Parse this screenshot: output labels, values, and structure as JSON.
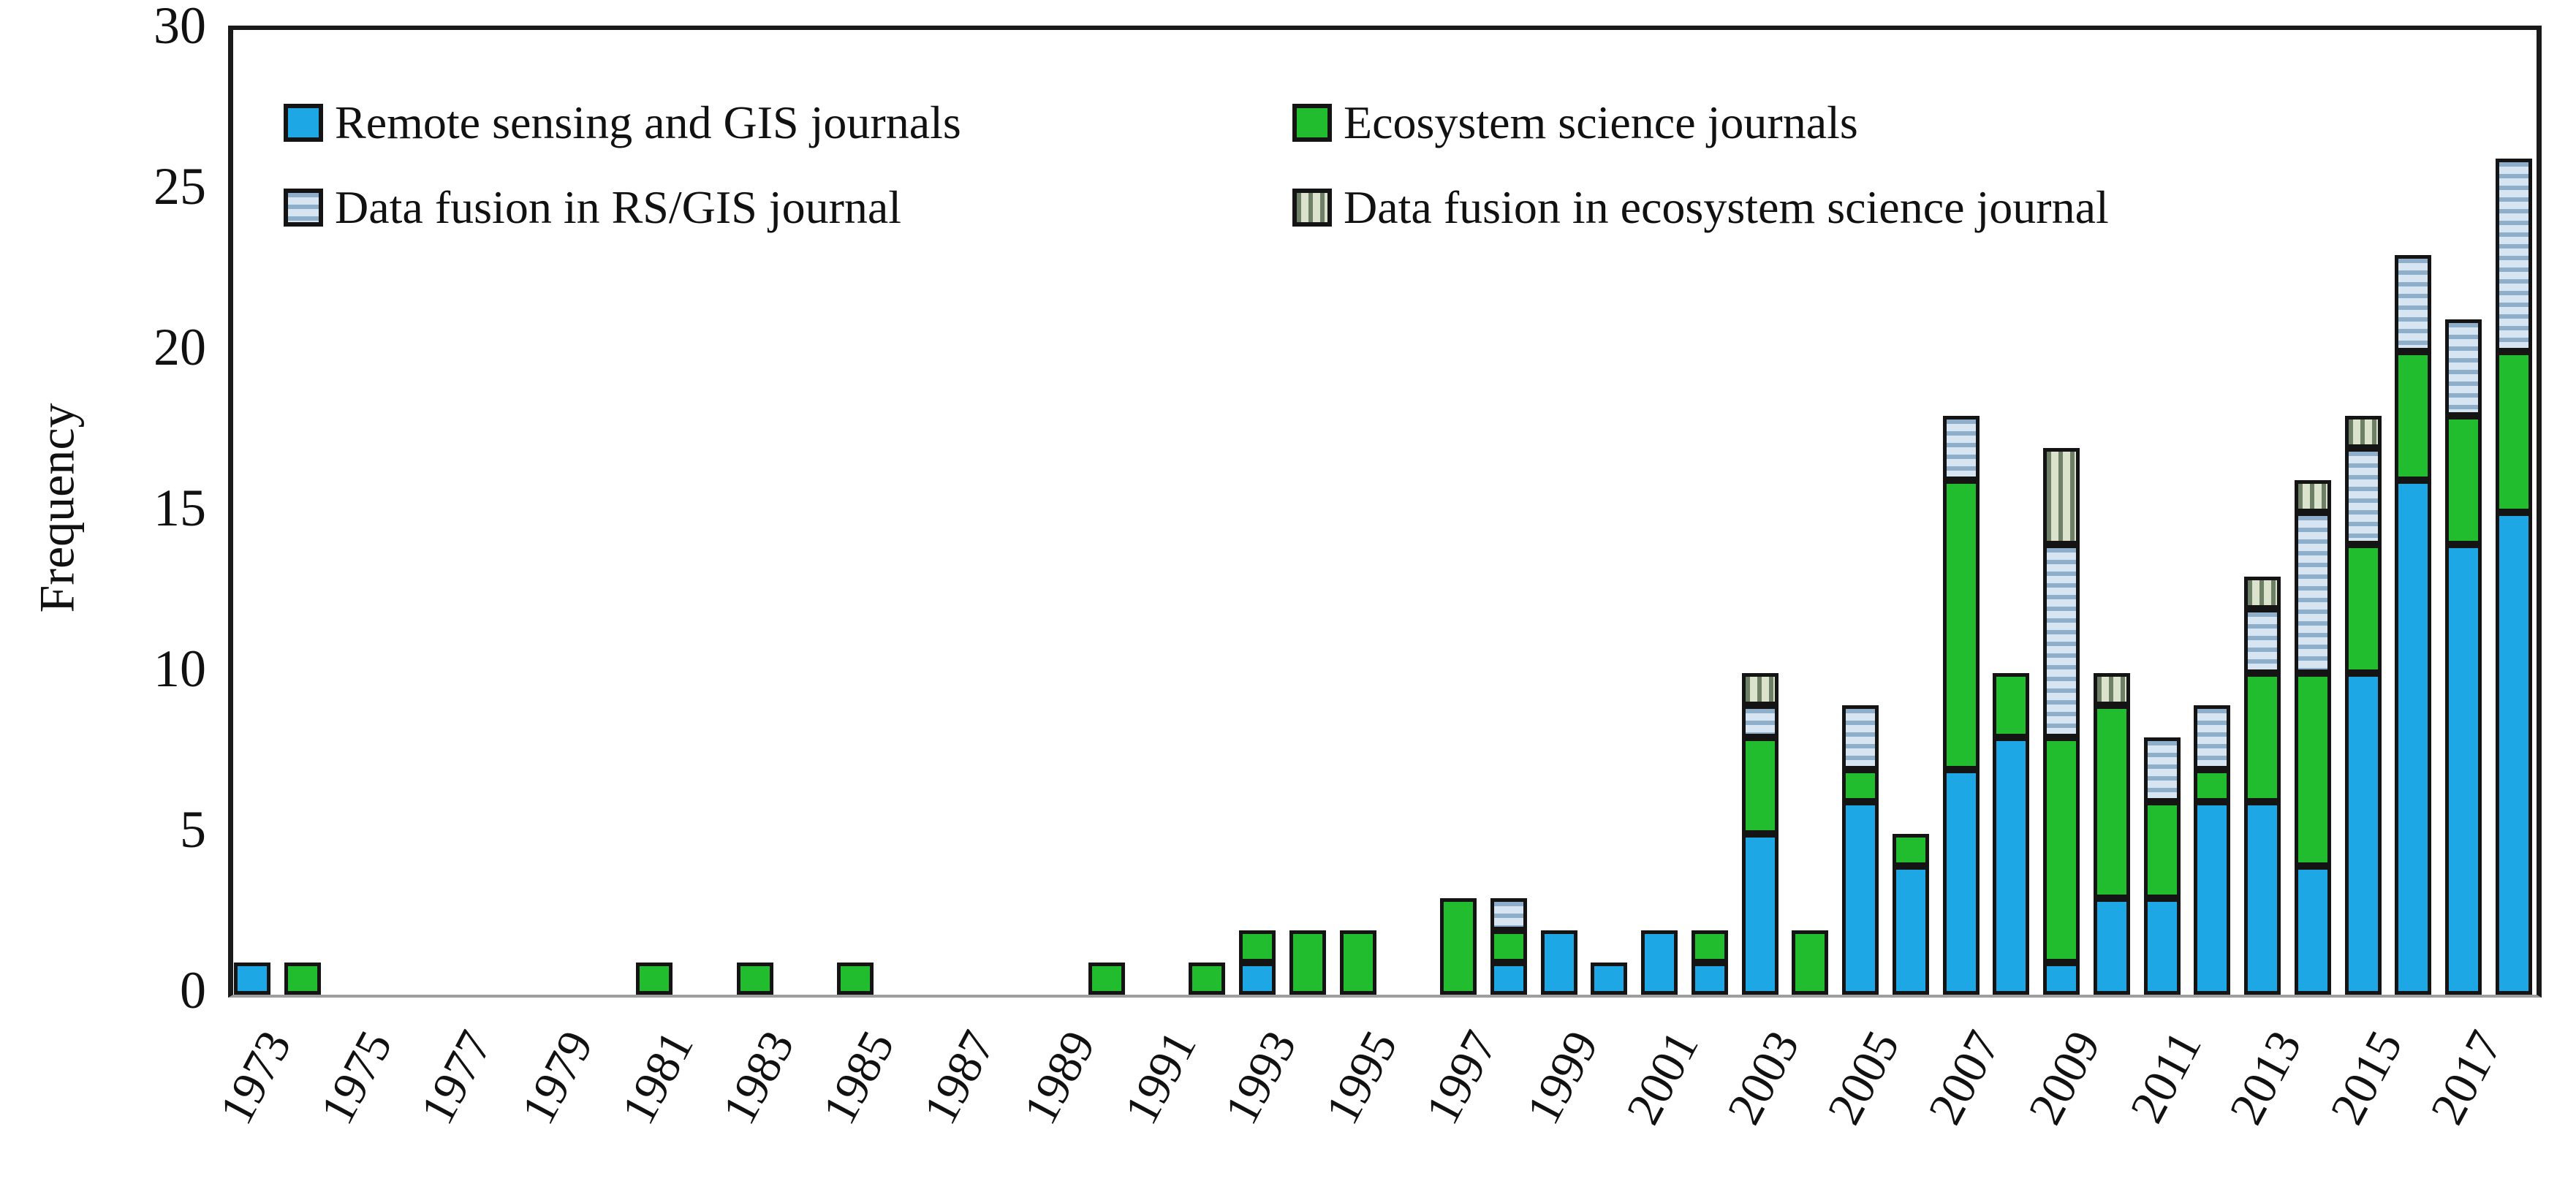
{
  "chart_data": {
    "type": "bar",
    "stacked": true,
    "title": "",
    "xlabel": "",
    "ylabel": "Frequency",
    "ylim": [
      0,
      30
    ],
    "yticks": [
      0,
      5,
      10,
      15,
      20,
      25,
      30
    ],
    "x_tick_labels": [
      "1973",
      "1975",
      "1977",
      "1979",
      "1981",
      "1983",
      "1985",
      "1987",
      "1989",
      "1991",
      "1993",
      "1995",
      "1997",
      "1999",
      "2001",
      "2003",
      "2005",
      "2007",
      "2009",
      "2011",
      "2013",
      "2015",
      "2017"
    ],
    "years": [
      1973,
      1974,
      1975,
      1976,
      1977,
      1978,
      1979,
      1980,
      1981,
      1982,
      1983,
      1984,
      1985,
      1986,
      1987,
      1988,
      1989,
      1990,
      1991,
      1992,
      1993,
      1994,
      1995,
      1996,
      1997,
      1998,
      1999,
      2000,
      2001,
      2002,
      2003,
      2004,
      2005,
      2006,
      2007,
      2008,
      2009,
      2010,
      2011,
      2012,
      2013,
      2014,
      2015,
      2016,
      2017,
      2018
    ],
    "grid": false,
    "legend_position": "top-left-inside",
    "series": [
      {
        "name": "Remote sensing and GIS journals",
        "style": "solid",
        "color": "#1da7e4",
        "values": [
          1,
          0,
          0,
          0,
          0,
          0,
          0,
          0,
          0,
          0,
          0,
          0,
          0,
          0,
          0,
          0,
          0,
          0,
          0,
          0,
          1,
          0,
          0,
          0,
          0,
          1,
          2,
          1,
          2,
          1,
          5,
          0,
          6,
          4,
          7,
          8,
          1,
          3,
          3,
          6,
          6,
          4,
          10,
          16,
          14,
          15
        ]
      },
      {
        "name": "Ecosystem science journals",
        "style": "solid",
        "color": "#22bd2f",
        "values": [
          0,
          1,
          0,
          0,
          0,
          0,
          0,
          0,
          1,
          0,
          1,
          0,
          1,
          0,
          0,
          0,
          0,
          1,
          0,
          1,
          1,
          2,
          2,
          0,
          3,
          1,
          0,
          0,
          0,
          1,
          3,
          2,
          1,
          1,
          9,
          2,
          7,
          6,
          3,
          1,
          4,
          6,
          4,
          4,
          4,
          5
        ]
      },
      {
        "name": "Data fusion in RS/GIS journal",
        "style": "hatch-horizontal",
        "color": "#d7e5f2",
        "stripe_color": "#8faec9",
        "values": [
          0,
          0,
          0,
          0,
          0,
          0,
          0,
          0,
          0,
          0,
          0,
          0,
          0,
          0,
          0,
          0,
          0,
          0,
          0,
          0,
          0,
          0,
          0,
          0,
          0,
          1,
          0,
          0,
          0,
          0,
          1,
          0,
          2,
          0,
          2,
          0,
          6,
          0,
          2,
          2,
          2,
          5,
          3,
          3,
          3,
          6
        ]
      },
      {
        "name": "Data fusion in ecosystem science journal",
        "style": "hatch-vertical",
        "color": "#dce3cd",
        "stripe_color": "#6e7f68",
        "values": [
          0,
          0,
          0,
          0,
          0,
          0,
          0,
          0,
          0,
          0,
          0,
          0,
          0,
          0,
          0,
          0,
          0,
          0,
          0,
          0,
          0,
          0,
          0,
          0,
          0,
          0,
          0,
          0,
          0,
          0,
          1,
          0,
          0,
          0,
          0,
          0,
          3,
          1,
          0,
          0,
          1,
          1,
          1,
          0,
          0,
          0
        ]
      }
    ]
  }
}
